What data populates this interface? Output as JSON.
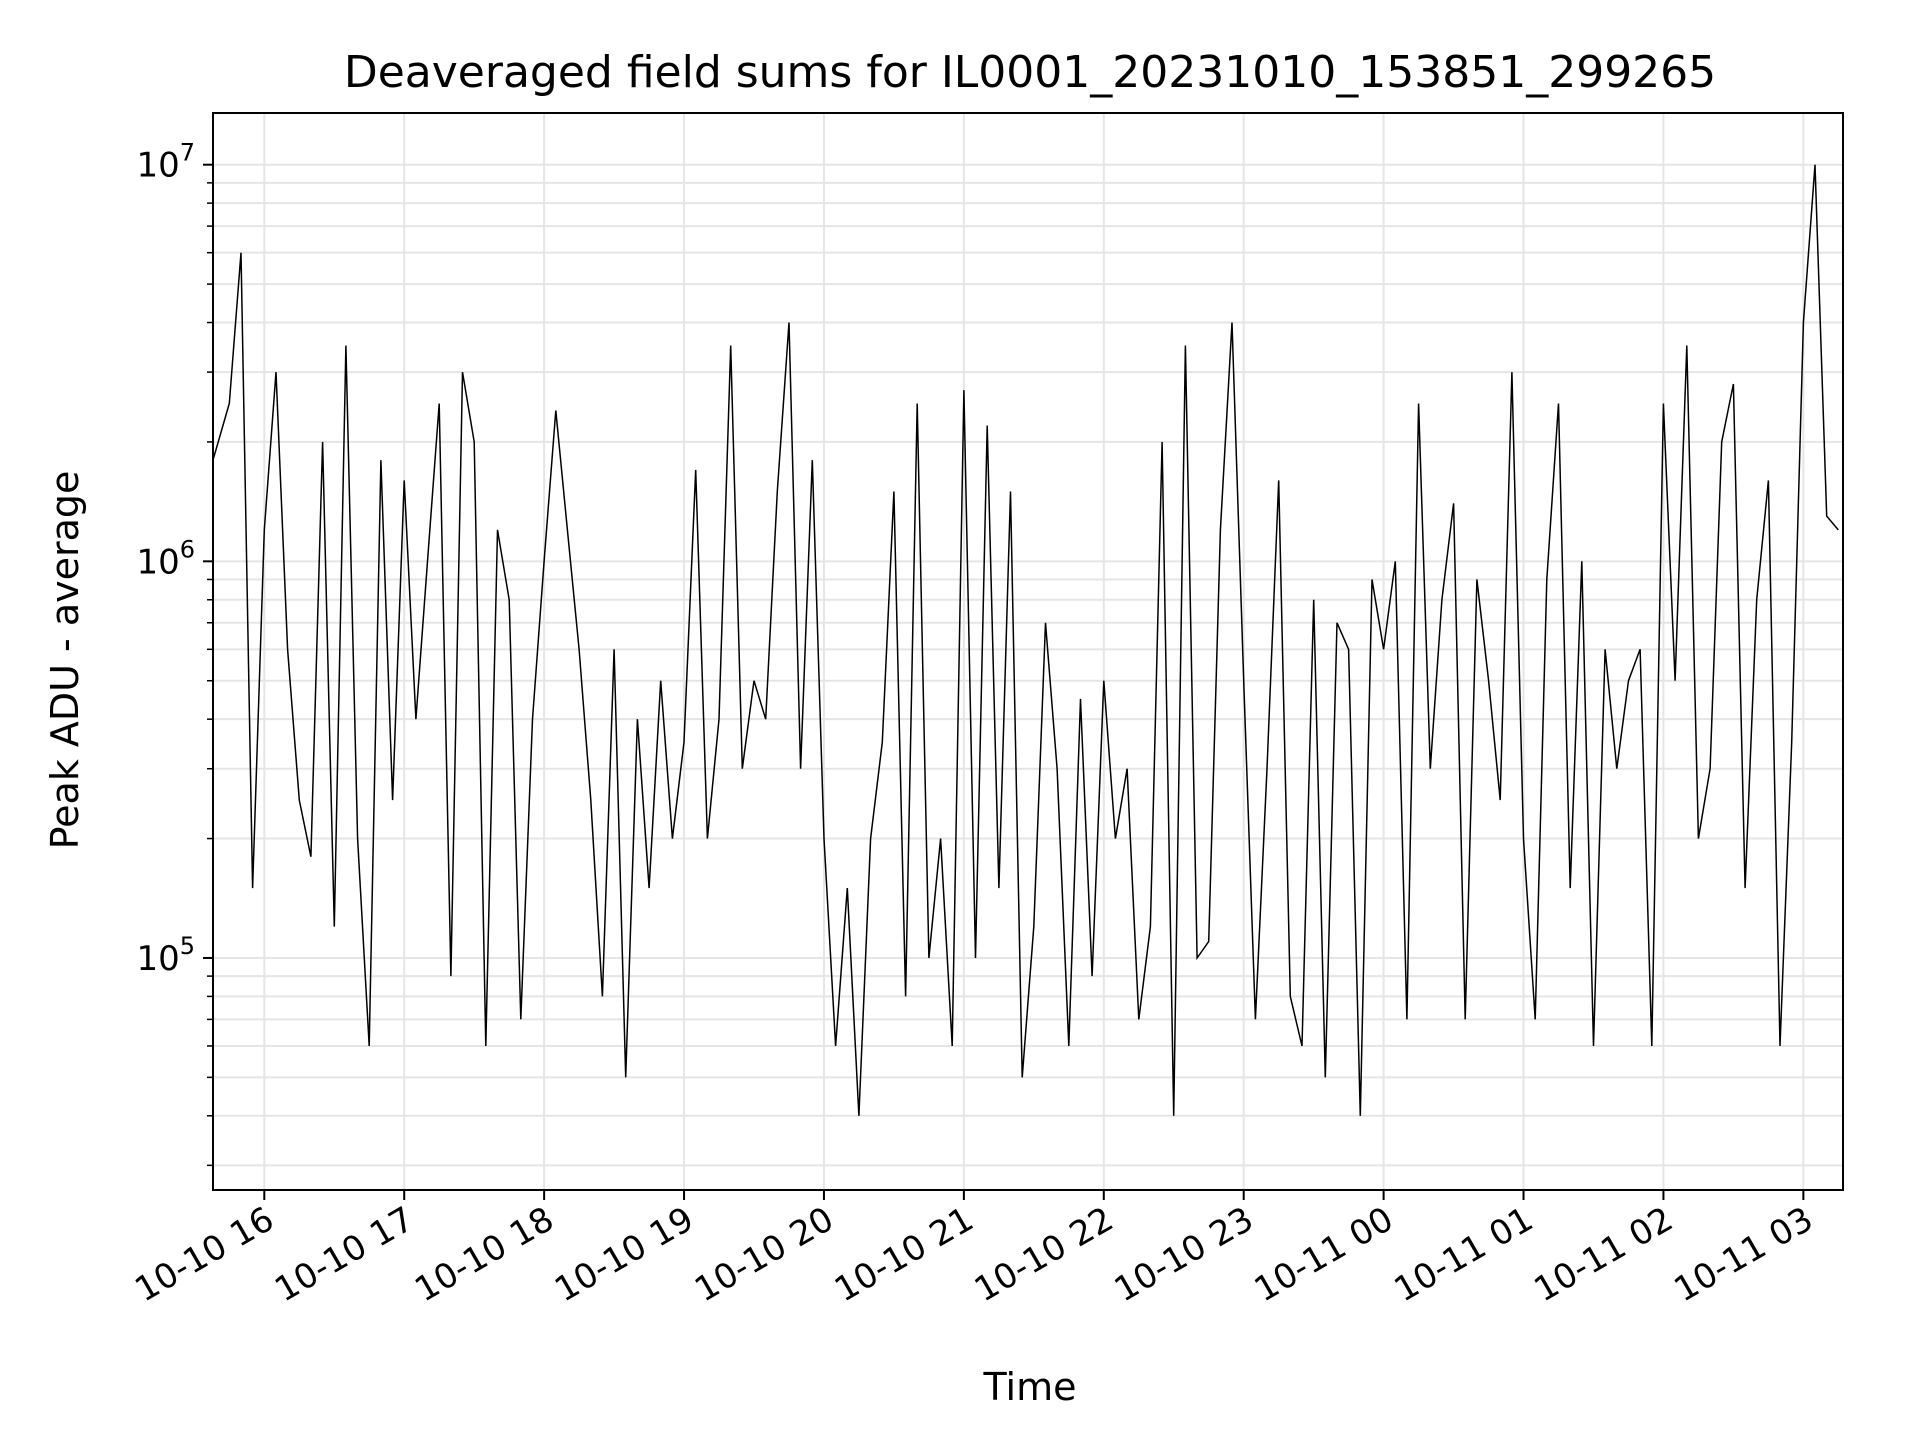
{
  "chart_data": {
    "type": "line",
    "title": "Deaveraged field sums for IL0001_20231010_153851_299265",
    "xlabel": "Time",
    "ylabel": "Peak ADU - average",
    "yscale": "log",
    "xlim": [
      "2023-10-10 15:38",
      "2023-10-11 03:17"
    ],
    "ylim": [
      26000,
      13500000
    ],
    "grid": true,
    "x_ticks": [
      {
        "value": "2023-10-10 16:00",
        "label": "10-10 16"
      },
      {
        "value": "2023-10-10 17:00",
        "label": "10-10 17"
      },
      {
        "value": "2023-10-10 18:00",
        "label": "10-10 18"
      },
      {
        "value": "2023-10-10 19:00",
        "label": "10-10 19"
      },
      {
        "value": "2023-10-10 20:00",
        "label": "10-10 20"
      },
      {
        "value": "2023-10-10 21:00",
        "label": "10-10 21"
      },
      {
        "value": "2023-10-10 22:00",
        "label": "10-10 22"
      },
      {
        "value": "2023-10-10 23:00",
        "label": "10-10 23"
      },
      {
        "value": "2023-10-11 00:00",
        "label": "10-11 00"
      },
      {
        "value": "2023-10-11 01:00",
        "label": "10-11 01"
      },
      {
        "value": "2023-10-11 02:00",
        "label": "10-11 02"
      },
      {
        "value": "2023-10-11 03:00",
        "label": "10-11 03"
      }
    ],
    "y_ticks": [
      {
        "value": 100000,
        "base": "10",
        "exp": "5"
      },
      {
        "value": 1000000,
        "base": "10",
        "exp": "6"
      },
      {
        "value": 10000000,
        "base": "10",
        "exp": "7"
      }
    ],
    "line_color": "#000000",
    "grid_color": "#e5e5e5",
    "series": [
      {
        "x": [
          "2023-10-10 15:38",
          "2023-10-10 15:45",
          "2023-10-10 15:50",
          "2023-10-10 15:55",
          "2023-10-10 16:00",
          "2023-10-10 16:05",
          "2023-10-10 16:10",
          "2023-10-10 16:15",
          "2023-10-10 16:20",
          "2023-10-10 16:25",
          "2023-10-10 16:30",
          "2023-10-10 16:35",
          "2023-10-10 16:40",
          "2023-10-10 16:45",
          "2023-10-10 16:50",
          "2023-10-10 16:55",
          "2023-10-10 17:00",
          "2023-10-10 17:05",
          "2023-10-10 17:10",
          "2023-10-10 17:15",
          "2023-10-10 17:20",
          "2023-10-10 17:25",
          "2023-10-10 17:30",
          "2023-10-10 17:35",
          "2023-10-10 17:40",
          "2023-10-10 17:45",
          "2023-10-10 17:50",
          "2023-10-10 17:55",
          "2023-10-10 18:00",
          "2023-10-10 18:05",
          "2023-10-10 18:10",
          "2023-10-10 18:15",
          "2023-10-10 18:20",
          "2023-10-10 18:25",
          "2023-10-10 18:30",
          "2023-10-10 18:35",
          "2023-10-10 18:40",
          "2023-10-10 18:45",
          "2023-10-10 18:50",
          "2023-10-10 18:55",
          "2023-10-10 19:00",
          "2023-10-10 19:05",
          "2023-10-10 19:10",
          "2023-10-10 19:15",
          "2023-10-10 19:20",
          "2023-10-10 19:25",
          "2023-10-10 19:30",
          "2023-10-10 19:35",
          "2023-10-10 19:40",
          "2023-10-10 19:45",
          "2023-10-10 19:50",
          "2023-10-10 19:55",
          "2023-10-10 20:00",
          "2023-10-10 20:05",
          "2023-10-10 20:10",
          "2023-10-10 20:15",
          "2023-10-10 20:20",
          "2023-10-10 20:25",
          "2023-10-10 20:30",
          "2023-10-10 20:35",
          "2023-10-10 20:40",
          "2023-10-10 20:45",
          "2023-10-10 20:50",
          "2023-10-10 20:55",
          "2023-10-10 21:00",
          "2023-10-10 21:05",
          "2023-10-10 21:10",
          "2023-10-10 21:15",
          "2023-10-10 21:20",
          "2023-10-10 21:25",
          "2023-10-10 21:30",
          "2023-10-10 21:35",
          "2023-10-10 21:40",
          "2023-10-10 21:45",
          "2023-10-10 21:50",
          "2023-10-10 21:55",
          "2023-10-10 22:00",
          "2023-10-10 22:05",
          "2023-10-10 22:10",
          "2023-10-10 22:15",
          "2023-10-10 22:20",
          "2023-10-10 22:25",
          "2023-10-10 22:30",
          "2023-10-10 22:35",
          "2023-10-10 22:40",
          "2023-10-10 22:45",
          "2023-10-10 22:50",
          "2023-10-10 22:55",
          "2023-10-10 23:00",
          "2023-10-10 23:05",
          "2023-10-10 23:10",
          "2023-10-10 23:15",
          "2023-10-10 23:20",
          "2023-10-10 23:25",
          "2023-10-10 23:30",
          "2023-10-10 23:35",
          "2023-10-10 23:40",
          "2023-10-10 23:45",
          "2023-10-10 23:50",
          "2023-10-10 23:55",
          "2023-10-11 00:00",
          "2023-10-11 00:05",
          "2023-10-11 00:10",
          "2023-10-11 00:15",
          "2023-10-11 00:20",
          "2023-10-11 00:25",
          "2023-10-11 00:30",
          "2023-10-11 00:35",
          "2023-10-11 00:40",
          "2023-10-11 00:45",
          "2023-10-11 00:50",
          "2023-10-11 00:55",
          "2023-10-11 01:00",
          "2023-10-11 01:05",
          "2023-10-11 01:10",
          "2023-10-11 01:15",
          "2023-10-11 01:20",
          "2023-10-11 01:25",
          "2023-10-11 01:30",
          "2023-10-11 01:35",
          "2023-10-11 01:40",
          "2023-10-11 01:45",
          "2023-10-11 01:50",
          "2023-10-11 01:55",
          "2023-10-11 02:00",
          "2023-10-11 02:05",
          "2023-10-11 02:10",
          "2023-10-11 02:15",
          "2023-10-11 02:20",
          "2023-10-11 02:25",
          "2023-10-11 02:30",
          "2023-10-11 02:35",
          "2023-10-11 02:40",
          "2023-10-11 02:45",
          "2023-10-11 02:50",
          "2023-10-11 02:55",
          "2023-10-11 03:00",
          "2023-10-11 03:05",
          "2023-10-11 03:10",
          "2023-10-11 03:15"
        ],
        "y": [
          1800000,
          2500000,
          6000000,
          150000,
          1200000,
          3000000,
          600000,
          250000,
          180000,
          2000000,
          120000,
          3500000,
          200000,
          60000,
          1800000,
          250000,
          1600000,
          400000,
          1000000,
          2500000,
          90000,
          3000000,
          2000000,
          60000,
          1200000,
          800000,
          70000,
          400000,
          1000000,
          2400000,
          1200000,
          600000,
          250000,
          80000,
          600000,
          50000,
          400000,
          150000,
          500000,
          200000,
          350000,
          1700000,
          200000,
          400000,
          3500000,
          300000,
          500000,
          400000,
          1500000,
          4000000,
          300000,
          1800000,
          200000,
          60000,
          150000,
          40000,
          200000,
          350000,
          1500000,
          80000,
          2500000,
          100000,
          200000,
          60000,
          2700000,
          100000,
          2200000,
          150000,
          1500000,
          50000,
          120000,
          700000,
          300000,
          60000,
          450000,
          90000,
          500000,
          200000,
          300000,
          70000,
          120000,
          2000000,
          40000,
          3500000,
          100000,
          110000,
          1200000,
          4000000,
          500000,
          70000,
          300000,
          1600000,
          80000,
          60000,
          800000,
          50000,
          700000,
          600000,
          40000,
          900000,
          600000,
          1000000,
          70000,
          2500000,
          300000,
          800000,
          1400000,
          70000,
          900000,
          500000,
          250000,
          3000000,
          200000,
          70000,
          900000,
          2500000,
          150000,
          1000000,
          60000,
          600000,
          300000,
          500000,
          600000,
          60000,
          2500000,
          500000,
          3500000,
          200000,
          300000,
          2000000,
          2800000,
          150000,
          800000,
          1600000,
          60000,
          350000,
          4000000,
          10000000,
          1300000,
          1200000
        ]
      }
    ]
  }
}
